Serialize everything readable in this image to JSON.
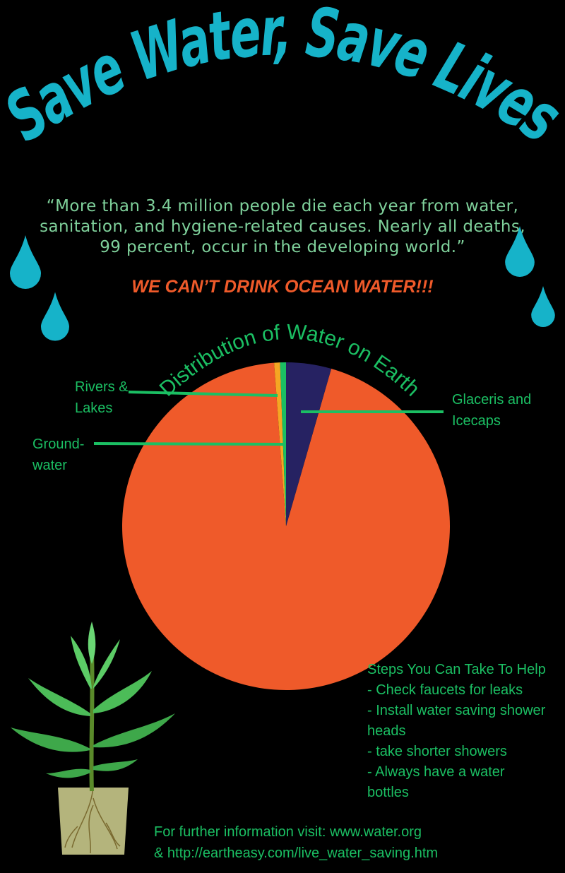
{
  "title": "Save Water, Save Lives",
  "quote_lines": [
    "“More than 3.4 million people die each year from water,",
    "sanitation, and hygiene-related causes. Nearly all deaths,",
    "99 percent, occur in the developing world.”"
  ],
  "slogan": "WE CAN’T DRINK OCEAN WATER!!!",
  "colors": {
    "title": "#16b3c9",
    "quote": "#7fd19b",
    "slogan": "#ef5a2a",
    "label": "#1bbf63",
    "drop": "#16b3c9"
  },
  "chart_data": {
    "type": "pie",
    "title": "Distribution of Water on Earth",
    "slices": [
      {
        "label": "",
        "value": 97.5,
        "color": "#ef5a2a"
      },
      {
        "label": "Rivers & Lakes",
        "value": 0.6,
        "color": "#f5a623"
      },
      {
        "label": "Ground-water",
        "value": 0.6,
        "color": "#1bbf63"
      },
      {
        "label": "Glaceris and Icecaps",
        "value": 4.6,
        "color": "#262262"
      }
    ]
  },
  "labels": {
    "rivers": [
      "Rivers &",
      "Lakes"
    ],
    "ground": [
      "Ground-",
      "water"
    ],
    "glaciers": [
      "Glaceris and",
      "Icecaps"
    ]
  },
  "steps": {
    "heading": "Steps You Can Take To Help",
    "items": [
      "- Check faucets for leaks",
      "- Install water saving shower",
      "heads",
      "- take shorter showers",
      "- Always have a water",
      "bottles"
    ]
  },
  "footer": [
    "For further information visit: www.water.org",
    "& http://eartheasy.com/live_water_saving.htm"
  ]
}
